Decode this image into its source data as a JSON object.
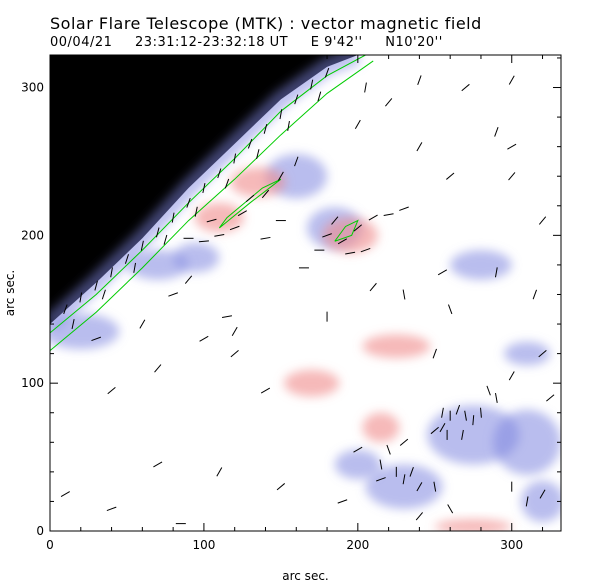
{
  "header": {
    "title": "Solar Flare Telescope (MTK) : vector magnetic field",
    "date": "00/04/21",
    "time_range": "23:31:12-23:32:18 UT",
    "longitude": "E 9'42''",
    "latitude": "N10'20''"
  },
  "colors": {
    "positive_field": "#f08a8a",
    "negative_field": "#7f86e0",
    "contours": "#00cc00",
    "off_limb": "#000000",
    "vectors": "#000000"
  },
  "chart_data": {
    "type": "heatmap",
    "title": "Solar Flare Telescope (MTK) : vector magnetic field",
    "xlabel": "arc sec.",
    "ylabel": "arc sec.",
    "xlim": [
      0,
      332
    ],
    "ylim": [
      0,
      322
    ],
    "xticks": [
      0,
      100,
      200,
      300
    ],
    "yticks": [
      0,
      100,
      200,
      300
    ],
    "limb_curve": [
      [
        0,
        140
      ],
      [
        30,
        168
      ],
      [
        60,
        198
      ],
      [
        90,
        232
      ],
      [
        120,
        262
      ],
      [
        150,
        292
      ],
      [
        180,
        314
      ],
      [
        200,
        322
      ]
    ],
    "contours": [
      [
        [
          0,
          134
        ],
        [
          30,
          160
        ],
        [
          60,
          190
        ],
        [
          90,
          222
        ],
        [
          120,
          252
        ],
        [
          150,
          284
        ],
        [
          180,
          308
        ],
        [
          205,
          322
        ]
      ],
      [
        [
          0,
          122
        ],
        [
          30,
          148
        ],
        [
          60,
          178
        ],
        [
          90,
          210
        ],
        [
          120,
          238
        ],
        [
          150,
          268
        ],
        [
          180,
          296
        ],
        [
          210,
          318
        ]
      ],
      [
        [
          110,
          205
        ],
        [
          130,
          222
        ],
        [
          150,
          238
        ],
        [
          138,
          232
        ],
        [
          115,
          212
        ],
        [
          110,
          205
        ]
      ],
      [
        [
          185,
          196
        ],
        [
          192,
          206
        ],
        [
          200,
          210
        ],
        [
          196,
          200
        ],
        [
          185,
          196
        ]
      ]
    ],
    "positive_regions": [
      {
        "x": 110,
        "y": 212,
        "rx": 16,
        "ry": 10
      },
      {
        "x": 135,
        "y": 236,
        "rx": 18,
        "ry": 10
      },
      {
        "x": 195,
        "y": 200,
        "rx": 18,
        "ry": 12
      },
      {
        "x": 225,
        "y": 125,
        "rx": 22,
        "ry": 8
      },
      {
        "x": 170,
        "y": 100,
        "rx": 18,
        "ry": 9
      },
      {
        "x": 215,
        "y": 70,
        "rx": 12,
        "ry": 10
      },
      {
        "x": 275,
        "y": 3,
        "rx": 25,
        "ry": 5
      }
    ],
    "negative_regions": [
      {
        "x": 160,
        "y": 240,
        "rx": 20,
        "ry": 15
      },
      {
        "x": 185,
        "y": 205,
        "rx": 18,
        "ry": 14
      },
      {
        "x": 95,
        "y": 185,
        "rx": 15,
        "ry": 10
      },
      {
        "x": 275,
        "y": 65,
        "rx": 30,
        "ry": 20
      },
      {
        "x": 230,
        "y": 30,
        "rx": 25,
        "ry": 15
      },
      {
        "x": 200,
        "y": 45,
        "rx": 15,
        "ry": 10
      },
      {
        "x": 310,
        "y": 60,
        "rx": 22,
        "ry": 22
      },
      {
        "x": 320,
        "y": 20,
        "rx": 14,
        "ry": 14
      },
      {
        "x": 280,
        "y": 180,
        "rx": 20,
        "ry": 10
      },
      {
        "x": 310,
        "y": 120,
        "rx": 15,
        "ry": 8
      },
      {
        "x": 20,
        "y": 135,
        "rx": 25,
        "ry": 12
      },
      {
        "x": 70,
        "y": 180,
        "rx": 20,
        "ry": 10
      }
    ],
    "vectors": [
      [
        10,
        150,
        70
      ],
      [
        20,
        158,
        80
      ],
      [
        30,
        166,
        75
      ],
      [
        40,
        175,
        80
      ],
      [
        50,
        184,
        72
      ],
      [
        60,
        193,
        78
      ],
      [
        70,
        202,
        75
      ],
      [
        80,
        212,
        80
      ],
      [
        90,
        222,
        70
      ],
      [
        100,
        232,
        78
      ],
      [
        110,
        242,
        72
      ],
      [
        120,
        252,
        80
      ],
      [
        130,
        262,
        70
      ],
      [
        140,
        272,
        75
      ],
      [
        150,
        282,
        80
      ],
      [
        160,
        292,
        72
      ],
      [
        170,
        302,
        78
      ],
      [
        180,
        310,
        70
      ],
      [
        15,
        140,
        78
      ],
      [
        35,
        160,
        72
      ],
      [
        55,
        178,
        80
      ],
      [
        75,
        197,
        74
      ],
      [
        95,
        216,
        78
      ],
      [
        115,
        235,
        70
      ],
      [
        135,
        255,
        76
      ],
      [
        155,
        274,
        80
      ],
      [
        175,
        294,
        74
      ],
      [
        90,
        198,
        0
      ],
      [
        100,
        196,
        5
      ],
      [
        110,
        200,
        10
      ],
      [
        120,
        205,
        20
      ],
      [
        125,
        215,
        30
      ],
      [
        105,
        210,
        15
      ],
      [
        130,
        225,
        40
      ],
      [
        140,
        228,
        50
      ],
      [
        150,
        240,
        60
      ],
      [
        160,
        250,
        70
      ],
      [
        150,
        210,
        0
      ],
      [
        140,
        198,
        10
      ],
      [
        180,
        200,
        20
      ],
      [
        190,
        196,
        30
      ],
      [
        200,
        205,
        40
      ],
      [
        185,
        210,
        50
      ],
      [
        195,
        188,
        10
      ],
      [
        205,
        190,
        20
      ],
      [
        175,
        190,
        0
      ],
      [
        165,
        178,
        0
      ],
      [
        210,
        212,
        30
      ],
      [
        220,
        214,
        10
      ],
      [
        230,
        218,
        20
      ],
      [
        255,
        80,
        80
      ],
      [
        260,
        78,
        90
      ],
      [
        265,
        82,
        70
      ],
      [
        270,
        78,
        100
      ],
      [
        275,
        75,
        85
      ],
      [
        268,
        65,
        80
      ],
      [
        258,
        65,
        90
      ],
      [
        255,
        70,
        60
      ],
      [
        250,
        68,
        40
      ],
      [
        280,
        80,
        95
      ],
      [
        285,
        95,
        110
      ],
      [
        290,
        90,
        100
      ],
      [
        235,
        40,
        70
      ],
      [
        240,
        30,
        60
      ],
      [
        230,
        35,
        80
      ],
      [
        225,
        40,
        90
      ],
      [
        215,
        45,
        100
      ],
      [
        220,
        55,
        110
      ],
      [
        250,
        30,
        100
      ],
      [
        260,
        15,
        120
      ],
      [
        300,
        30,
        90
      ],
      [
        310,
        20,
        80
      ],
      [
        320,
        25,
        60
      ],
      [
        10,
        25,
        30
      ],
      [
        40,
        95,
        40
      ],
      [
        70,
        110,
        50
      ],
      [
        30,
        130,
        20
      ],
      [
        60,
        140,
        60
      ],
      [
        100,
        130,
        30
      ],
      [
        120,
        120,
        40
      ],
      [
        80,
        160,
        20
      ],
      [
        90,
        170,
        50
      ],
      [
        115,
        145,
        10
      ],
      [
        200,
        55,
        30
      ],
      [
        215,
        35,
        20
      ],
      [
        230,
        60,
        40
      ],
      [
        240,
        10,
        50
      ],
      [
        190,
        20,
        20
      ],
      [
        300,
        105,
        60
      ],
      [
        320,
        120,
        40
      ],
      [
        315,
        160,
        70
      ],
      [
        290,
        175,
        80
      ],
      [
        255,
        175,
        30
      ],
      [
        240,
        260,
        60
      ],
      [
        290,
        270,
        70
      ],
      [
        300,
        240,
        50
      ],
      [
        270,
        300,
        40
      ],
      [
        300,
        305,
        60
      ],
      [
        220,
        290,
        50
      ],
      [
        240,
        305,
        70
      ],
      [
        200,
        275,
        60
      ],
      [
        260,
        240,
        40
      ],
      [
        205,
        300,
        80
      ],
      [
        180,
        145,
        90
      ],
      [
        230,
        160,
        100
      ],
      [
        260,
        150,
        110
      ],
      [
        210,
        165,
        50
      ],
      [
        120,
        135,
        60
      ],
      [
        150,
        30,
        40
      ],
      [
        110,
        40,
        60
      ],
      [
        70,
        45,
        30
      ],
      [
        40,
        15,
        20
      ],
      [
        85,
        5,
        0
      ],
      [
        300,
        260,
        30
      ],
      [
        320,
        210,
        50
      ],
      [
        325,
        90,
        40
      ],
      [
        250,
        120,
        70
      ],
      [
        140,
        95,
        30
      ]
    ]
  }
}
